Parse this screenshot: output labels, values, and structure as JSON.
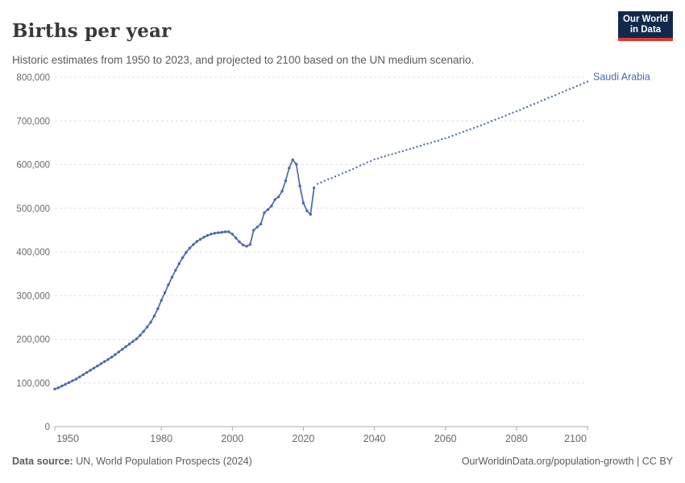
{
  "header": {
    "title": "Births per year",
    "subtitle": "Historic estimates from 1950 to 2023, and projected to 2100 based on the UN medium scenario."
  },
  "logo": {
    "line1": "Our World",
    "line2": "in Data",
    "bg_color": "#12294b",
    "accent_color": "#dc3a2f"
  },
  "entity_label": "Saudi Arabia",
  "colors": {
    "line": "#4a68ad",
    "grid": "#e0e0e0",
    "axis": "#adadad",
    "tick_text": "#696969"
  },
  "footer": {
    "datasource_label": "Data source:",
    "datasource_value": " UN, World Population Prospects (2024)",
    "link": "OurWorldinData.org/population-growth",
    "license": " | CC BY"
  },
  "chart_data": {
    "type": "line",
    "title": "Births per year",
    "entity": "Saudi Arabia",
    "xlabel": "",
    "ylabel": "",
    "xlim": [
      1950,
      2100
    ],
    "ylim": [
      0,
      800000
    ],
    "x_ticks": [
      1950,
      1980,
      2000,
      2020,
      2040,
      2060,
      2080,
      2100
    ],
    "y_ticks": [
      0,
      100000,
      200000,
      300000,
      400000,
      500000,
      600000,
      700000,
      800000
    ],
    "grid": true,
    "legend_position": "end-of-line-label",
    "series": [
      {
        "name": "historic",
        "style": "solid",
        "x": [
          1950,
          1951,
          1952,
          1953,
          1954,
          1955,
          1956,
          1957,
          1958,
          1959,
          1960,
          1961,
          1962,
          1963,
          1964,
          1965,
          1966,
          1967,
          1968,
          1969,
          1970,
          1971,
          1972,
          1973,
          1974,
          1975,
          1976,
          1977,
          1978,
          1979,
          1980,
          1981,
          1982,
          1983,
          1984,
          1985,
          1986,
          1987,
          1988,
          1989,
          1990,
          1991,
          1992,
          1993,
          1994,
          1995,
          1996,
          1997,
          1998,
          1999,
          2000,
          2001,
          2002,
          2003,
          2004,
          2005,
          2006,
          2007,
          2008,
          2009,
          2010,
          2011,
          2012,
          2013,
          2014,
          2015,
          2016,
          2017,
          2018,
          2019,
          2020,
          2021,
          2022,
          2023
        ],
        "values": [
          86000,
          89000,
          93000,
          97000,
          101000,
          105000,
          109000,
          114000,
          119000,
          124000,
          129000,
          134000,
          139000,
          144000,
          149000,
          154000,
          159000,
          165000,
          171000,
          177000,
          183000,
          189000,
          195000,
          201000,
          209000,
          218000,
          228000,
          239000,
          253000,
          270000,
          289000,
          307000,
          325000,
          342000,
          358000,
          373000,
          387000,
          399000,
          409000,
          417000,
          424000,
          429000,
          434000,
          438000,
          441000,
          443000,
          444000,
          445000,
          446000,
          446000,
          441000,
          432000,
          423000,
          416000,
          413000,
          417000,
          450000,
          457000,
          464000,
          490000,
          497000,
          505000,
          520000,
          526000,
          539000,
          563000,
          592000,
          611000,
          601000,
          551000,
          512000,
          494000,
          486000,
          547000
        ]
      },
      {
        "name": "projected",
        "style": "dotted",
        "x": [
          2024,
          2025,
          2026,
          2027,
          2028,
          2029,
          2030,
          2031,
          2032,
          2033,
          2034,
          2035,
          2036,
          2037,
          2038,
          2039,
          2040,
          2041,
          2042,
          2043,
          2044,
          2045,
          2046,
          2047,
          2048,
          2049,
          2050,
          2051,
          2052,
          2053,
          2054,
          2055,
          2056,
          2057,
          2058,
          2059,
          2060,
          2061,
          2062,
          2063,
          2064,
          2065,
          2066,
          2067,
          2068,
          2069,
          2070,
          2071,
          2072,
          2073,
          2074,
          2075,
          2076,
          2077,
          2078,
          2079,
          2080,
          2081,
          2082,
          2083,
          2084,
          2085,
          2086,
          2087,
          2088,
          2089,
          2090,
          2091,
          2092,
          2093,
          2094,
          2095,
          2096,
          2097,
          2098,
          2099,
          2100
        ],
        "values": [
          556000,
          559000,
          563000,
          566000,
          569000,
          573000,
          576000,
          580000,
          583000,
          587000,
          590000,
          594000,
          598000,
          601000,
          605000,
          608000,
          612000,
          614000,
          617000,
          619000,
          622000,
          624000,
          626000,
          629000,
          631000,
          634000,
          636000,
          638000,
          641000,
          643000,
          646000,
          648000,
          650000,
          653000,
          655000,
          658000,
          660000,
          663000,
          666000,
          669000,
          672000,
          675000,
          678000,
          681000,
          684000,
          687000,
          690000,
          693000,
          696000,
          700000,
          703000,
          706000,
          709000,
          712000,
          716000,
          719000,
          722000,
          725000,
          729000,
          732000,
          736000,
          739000,
          742000,
          746000,
          749000,
          753000,
          756000,
          759000,
          763000,
          766000,
          770000,
          773000,
          776000,
          780000,
          783000,
          787000,
          790000
        ]
      }
    ]
  }
}
